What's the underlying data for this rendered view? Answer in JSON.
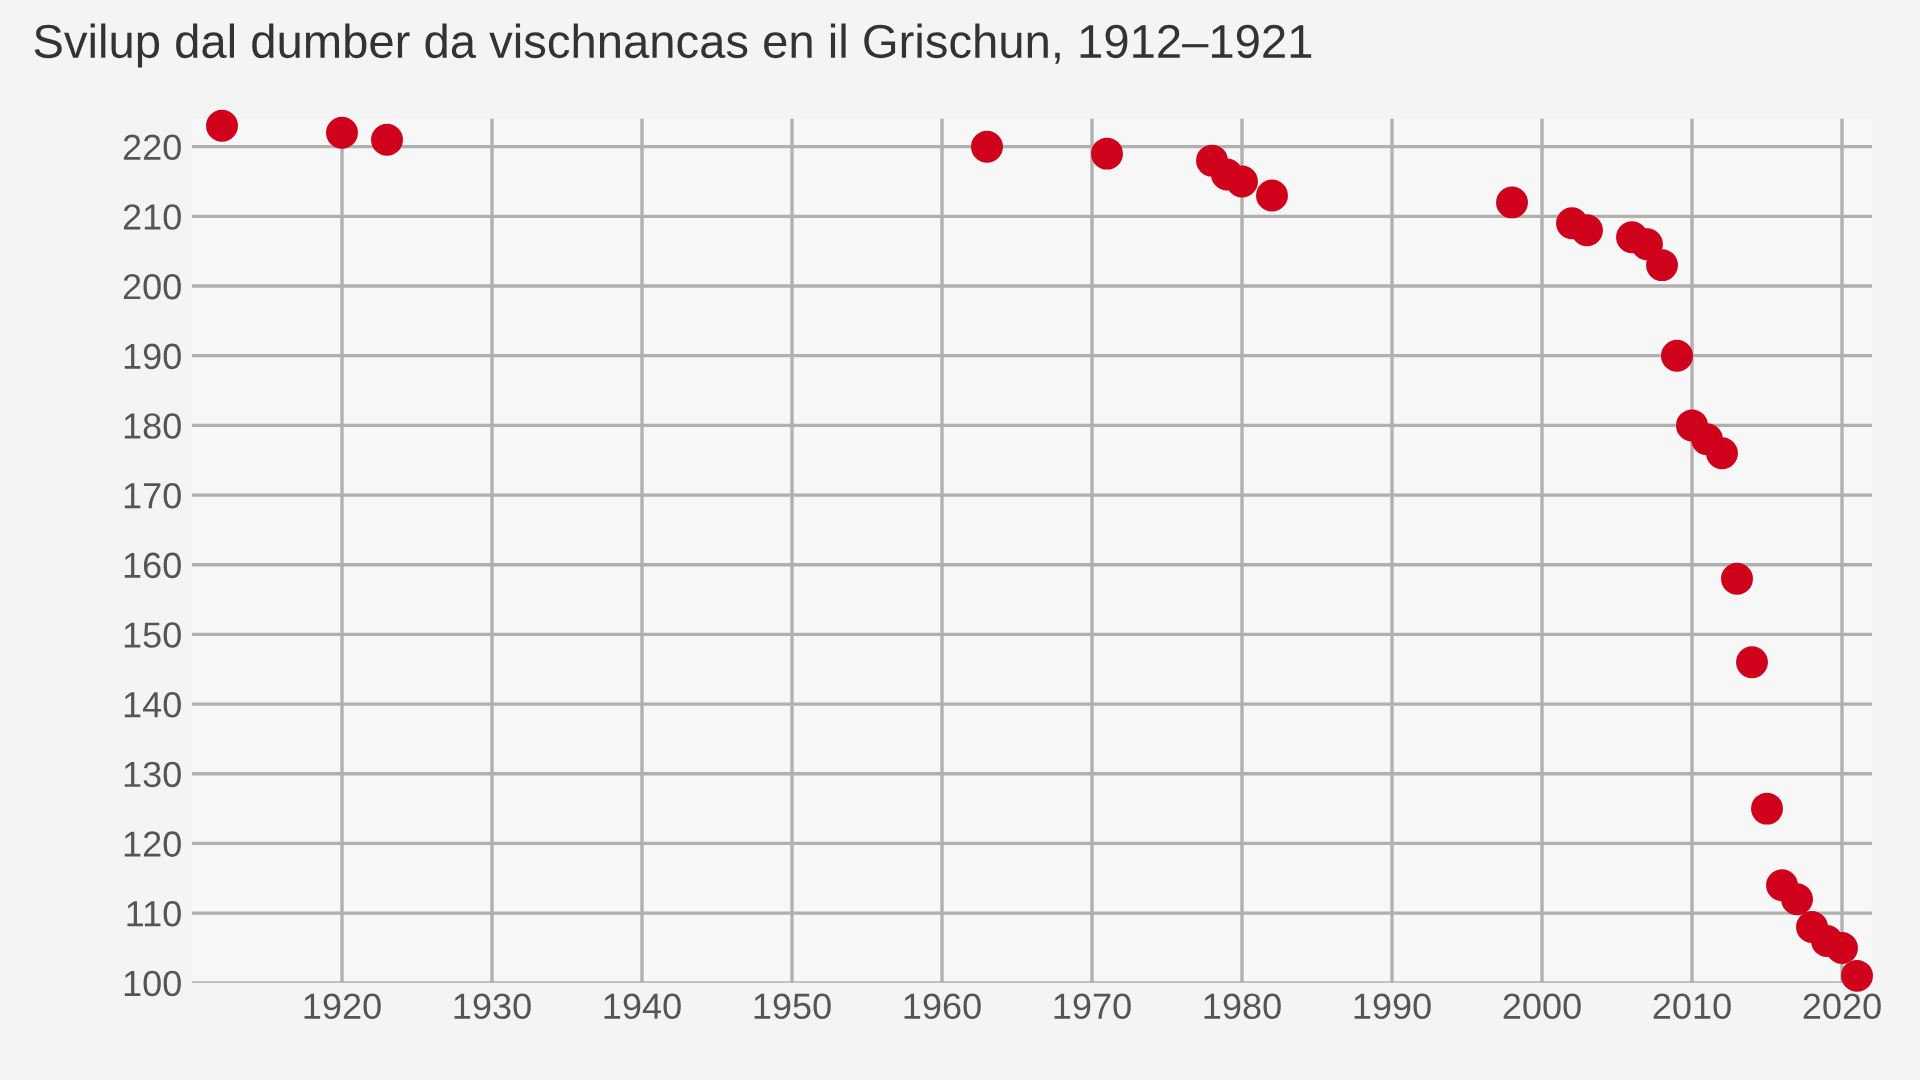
{
  "chart_data": {
    "type": "scatter",
    "title": "Svilup dal dumber da vischnancas en il Grischun, 1912–1921",
    "x": [
      1912,
      1920,
      1923,
      1963,
      1971,
      1978,
      1979,
      1980,
      1982,
      1998,
      2002,
      2003,
      2006,
      2007,
      2008,
      2009,
      2010,
      2011,
      2012,
      2013,
      2014,
      2015,
      2016,
      2017,
      2018,
      2019,
      2020,
      2021
    ],
    "series": [
      {
        "color": "#d0021b",
        "values": [
          223,
          222,
          221,
          220,
          219,
          218,
          216,
          215,
          213,
          212,
          209,
          208,
          207,
          206,
          203,
          190,
          180,
          178,
          176,
          158,
          146,
          125,
          114,
          112,
          108,
          106,
          105,
          101
        ]
      }
    ],
    "marker": "circle",
    "xlim": [
      1910,
      2022
    ],
    "ylim": [
      100,
      224
    ],
    "xticks": [
      1920,
      1930,
      1940,
      1950,
      1960,
      1970,
      1980,
      1990,
      2000,
      2010,
      2020
    ],
    "yticks": [
      100,
      110,
      120,
      130,
      140,
      150,
      160,
      170,
      180,
      190,
      200,
      210,
      220
    ],
    "grid": true
  }
}
